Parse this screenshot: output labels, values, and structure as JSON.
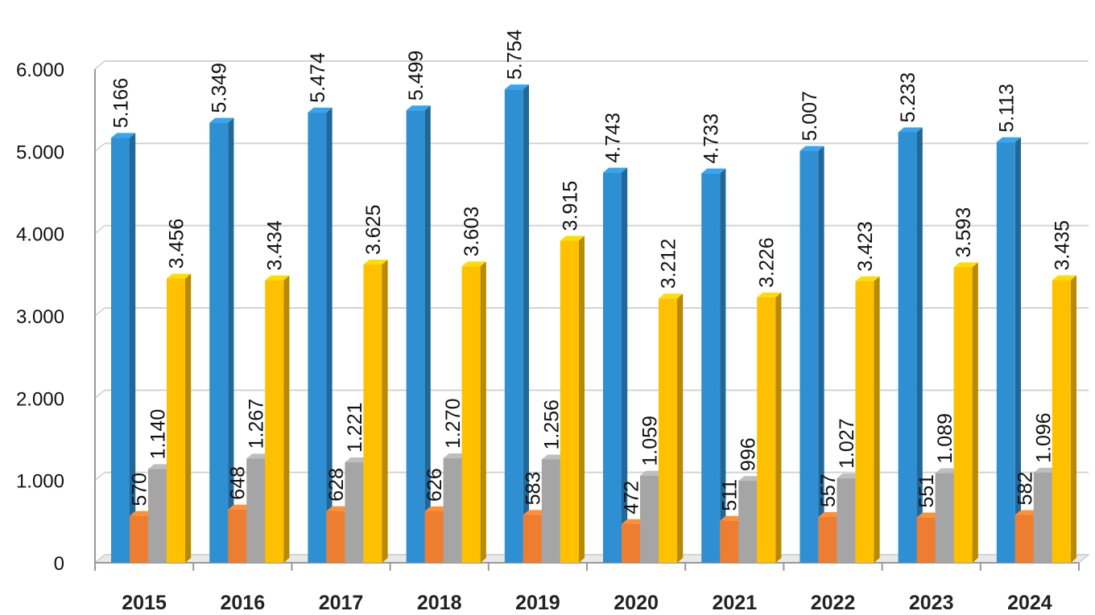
{
  "chart_data": {
    "type": "bar",
    "style": "3d-clustered-column",
    "categories": [
      "2015",
      "2016",
      "2017",
      "2018",
      "2019",
      "2020",
      "2021",
      "2022",
      "2023",
      "2024"
    ],
    "series": [
      {
        "color": "#2E8FD2",
        "values": [
          5166,
          5349,
          5474,
          5499,
          5754,
          4743,
          4733,
          5007,
          5233,
          5113
        ],
        "labels": [
          "5.166",
          "5.349",
          "5.474",
          "5.499",
          "5.754",
          "4.743",
          "4.733",
          "5.007",
          "5.233",
          "5.113"
        ]
      },
      {
        "color": "#ED7D31",
        "values": [
          570,
          648,
          628,
          626,
          583,
          472,
          511,
          557,
          551,
          582
        ],
        "labels": [
          "570",
          "648",
          "628",
          "626",
          "583",
          "472",
          "511",
          "557",
          "551",
          "582"
        ]
      },
      {
        "color": "#A5A5A5",
        "values": [
          1140,
          1267,
          1221,
          1270,
          1256,
          1059,
          996,
          1027,
          1089,
          1096
        ],
        "labels": [
          "1.140",
          "1.267",
          "1.221",
          "1.270",
          "1.256",
          "1.059",
          "996",
          "1.027",
          "1.089",
          "1.096"
        ]
      },
      {
        "color": "#FFC000",
        "values": [
          3456,
          3434,
          3625,
          3603,
          3915,
          3212,
          3226,
          3423,
          3593,
          3435
        ],
        "labels": [
          "3.456",
          "3.434",
          "3.625",
          "3.603",
          "3.915",
          "3.212",
          "3.226",
          "3.423",
          "3.593",
          "3.435"
        ]
      }
    ],
    "yticks": [
      {
        "value": 0,
        "label": "0"
      },
      {
        "value": 1000,
        "label": "1.000"
      },
      {
        "value": 2000,
        "label": "2.000"
      },
      {
        "value": 3000,
        "label": "3.000"
      },
      {
        "value": 4000,
        "label": "4.000"
      },
      {
        "value": 5000,
        "label": "5.000"
      },
      {
        "value": 6000,
        "label": "6.000"
      }
    ],
    "ylim": [
      0,
      6000
    ],
    "grid": true,
    "legend": "none"
  }
}
